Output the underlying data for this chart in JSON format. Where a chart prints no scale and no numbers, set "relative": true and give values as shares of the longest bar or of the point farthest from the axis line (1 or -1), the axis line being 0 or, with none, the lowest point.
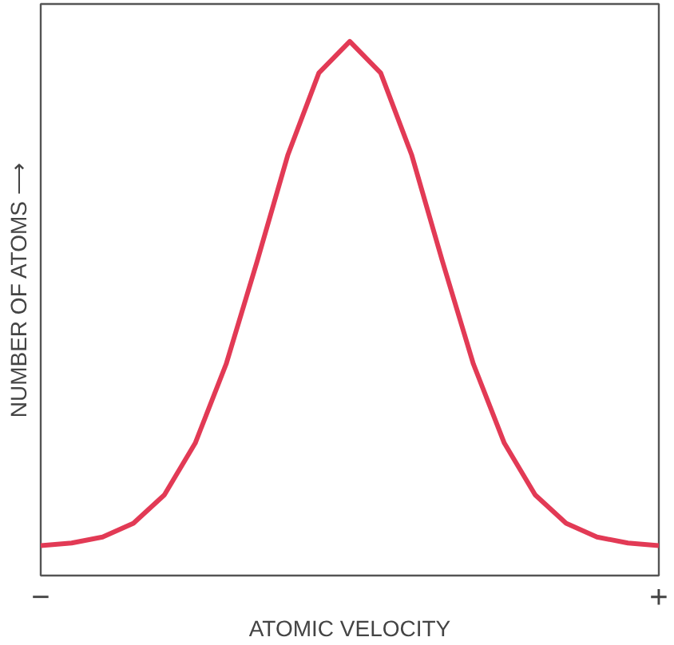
{
  "chart_data": {
    "type": "line",
    "relative": true,
    "xlabel": "ATOMIC VELOCITY",
    "ylabel": "NUMBER OF ATOMS ⟶",
    "categories": [
      null,
      null,
      null,
      null,
      null,
      null,
      null,
      null,
      null,
      null,
      null,
      null,
      null,
      null,
      null,
      null,
      null,
      null,
      null,
      null,
      null
    ],
    "series": [
      {
        "color": "#e23a55",
        "values": [
          0.056,
          0.061,
          0.072,
          0.098,
          0.151,
          0.248,
          0.396,
          0.588,
          0.788,
          0.941,
          1,
          0.941,
          0.788,
          0.588,
          0.396,
          0.248,
          0.151,
          0.098,
          0.072,
          0.061,
          0.056
        ]
      }
    ],
    "annotations": [
      "−",
      "+"
    ],
    "marker": "none",
    "line_style": "solid"
  }
}
